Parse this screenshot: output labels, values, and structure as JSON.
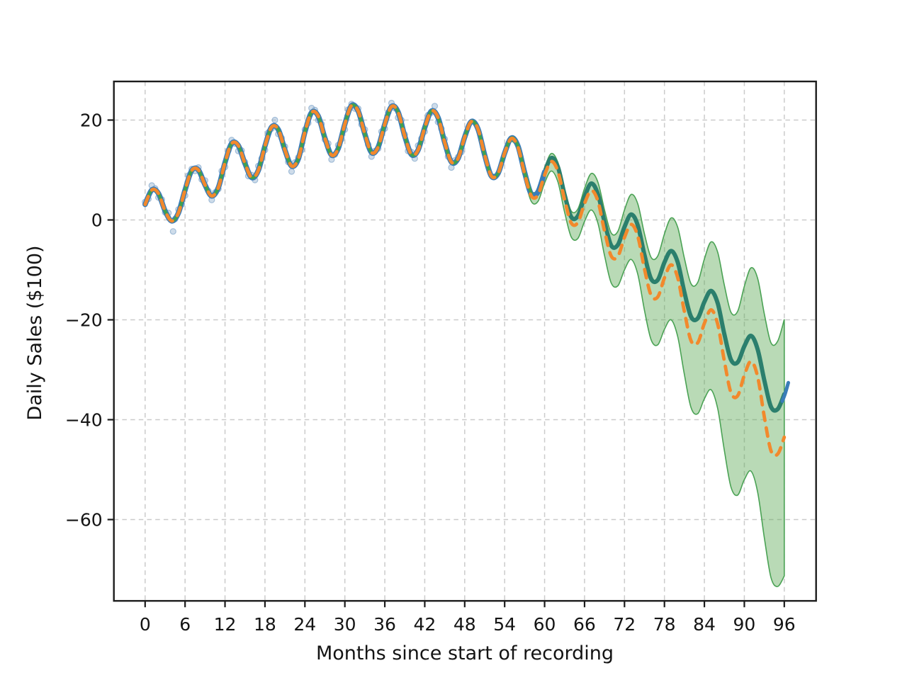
{
  "chart_data": {
    "type": "line",
    "title": "",
    "xlabel": "Months since start of recording",
    "ylabel": "Daily Sales ($100)",
    "xticks": [
      0,
      6,
      12,
      18,
      24,
      30,
      36,
      42,
      48,
      54,
      60,
      66,
      72,
      78,
      84,
      90,
      96
    ],
    "xtick_labels": [
      "0",
      "6",
      "12",
      "18",
      "24",
      "30",
      "36",
      "42",
      "48",
      "54",
      "60",
      "66",
      "72",
      "78",
      "84",
      "90",
      "96"
    ],
    "yticks": [
      20,
      0,
      -20,
      -40,
      -60
    ],
    "ytick_labels": [
      "20",
      "0",
      "−20",
      "−40",
      "−60"
    ],
    "xlim": [
      -4.7,
      101.1
    ],
    "ylim": [
      -76.3,
      27.7
    ],
    "grid": true,
    "grid_style": "dashed",
    "legend": "none",
    "colors": {
      "observations": "#7da3c8",
      "actual_line": "#3a7cb8",
      "fit_line": "#2b7f6d",
      "band_edge_line": "#41a24c",
      "forecast_dashed": "#f2892c",
      "band_fill": "rgba(88,168,82,0.42)",
      "band_edge": "#4aa254",
      "grid": "#cbcbcb",
      "spine": "#1c1c1c"
    },
    "series": [
      {
        "name": "observed-scatter",
        "type": "scatter",
        "color": "#7da3c8",
        "alpha": 0.38,
        "radius": 4,
        "points": [
          [
            0,
            3.6
          ],
          [
            0.5,
            4.2
          ],
          [
            1,
            6.9
          ],
          [
            1.5,
            6.3
          ],
          [
            2,
            4.5
          ],
          [
            2.5,
            4.1
          ],
          [
            3,
            1.5
          ],
          [
            3.5,
            1.4
          ],
          [
            4.2,
            -2.3
          ],
          [
            4.5,
            0.2
          ],
          [
            5,
            2.1
          ],
          [
            5.5,
            3.1
          ],
          [
            6,
            4.9
          ],
          [
            6.5,
            8.9
          ],
          [
            7,
            10.2
          ],
          [
            7.5,
            9.8
          ],
          [
            8,
            10.5
          ],
          [
            8.5,
            8.1
          ],
          [
            9,
            7.9
          ],
          [
            9.5,
            5.8
          ],
          [
            10,
            4.0
          ],
          [
            10.5,
            5.5
          ],
          [
            11,
            6.2
          ],
          [
            11.5,
            9.8
          ],
          [
            12,
            10.6
          ],
          [
            12.5,
            13.9
          ],
          [
            13,
            16.0
          ],
          [
            13.5,
            15.3
          ],
          [
            14,
            13.8
          ],
          [
            14.5,
            13.9
          ],
          [
            15,
            11.6
          ],
          [
            15.5,
            8.8
          ],
          [
            16,
            9.0
          ],
          [
            16.5,
            8.0
          ],
          [
            17,
            10.8
          ],
          [
            17.5,
            12.3
          ],
          [
            18,
            14.0
          ],
          [
            18.5,
            17.5
          ],
          [
            19,
            18.3
          ],
          [
            19.5,
            20.0
          ],
          [
            20,
            17.2
          ],
          [
            20.5,
            16.4
          ],
          [
            21,
            14.7
          ],
          [
            21.5,
            11.6
          ],
          [
            22,
            9.7
          ],
          [
            22.5,
            11.5
          ],
          [
            23,
            12.5
          ],
          [
            23.5,
            14.0
          ],
          [
            24,
            18.1
          ],
          [
            24.5,
            19.4
          ],
          [
            25,
            22.4
          ],
          [
            25.5,
            22.0
          ],
          [
            26,
            20.0
          ],
          [
            26.5,
            19.2
          ],
          [
            27,
            16.1
          ],
          [
            27.5,
            15.3
          ],
          [
            28,
            12.1
          ],
          [
            28.5,
            13.1
          ],
          [
            29,
            15.0
          ],
          [
            29.5,
            16.2
          ],
          [
            30,
            18.1
          ],
          [
            30.5,
            22.1
          ],
          [
            31,
            23.2
          ],
          [
            31.5,
            22.3
          ],
          [
            32,
            22.3
          ],
          [
            32.5,
            19.1
          ],
          [
            33,
            18.1
          ],
          [
            33.5,
            15.1
          ],
          [
            34,
            12.7
          ],
          [
            34.5,
            13.8
          ],
          [
            35,
            14.3
          ],
          [
            35.5,
            17.7
          ],
          [
            36,
            18.3
          ],
          [
            36.5,
            21.5
          ],
          [
            37,
            23.4
          ],
          [
            37.5,
            22.4
          ],
          [
            38,
            20.5
          ],
          [
            38.5,
            20.0
          ],
          [
            39,
            17.1
          ],
          [
            39.5,
            13.8
          ],
          [
            40,
            13.6
          ],
          [
            40.5,
            12.3
          ],
          [
            41,
            14.9
          ],
          [
            41.5,
            16.3
          ],
          [
            42,
            17.7
          ],
          [
            42.5,
            21.0
          ],
          [
            43,
            21.5
          ],
          [
            43.5,
            22.8
          ],
          [
            44,
            19.6
          ],
          [
            44.5,
            18.3
          ],
          [
            45,
            16.2
          ],
          [
            45.5,
            12.7
          ],
          [
            46,
            10.5
          ],
          [
            46.5,
            11.9
          ],
          [
            47,
            12.6
          ],
          [
            47.5,
            13.6
          ]
        ]
      },
      {
        "name": "actual-blue-line",
        "type": "line",
        "color": "#3a7cb8",
        "width": 7.5,
        "x_start": 0,
        "x_step": 1,
        "values": [
          3.1,
          6.0,
          5.3,
          1.8,
          -0.2,
          1.4,
          6.0,
          9.9,
          10.0,
          7.0,
          4.8,
          6.5,
          11.5,
          15.3,
          14.9,
          11.3,
          8.5,
          9.9,
          14.8,
          18.6,
          18.1,
          14.0,
          10.8,
          12.2,
          17.6,
          21.5,
          20.8,
          16.4,
          13.0,
          14.3,
          19.2,
          22.9,
          21.8,
          17.2,
          13.5,
          14.6,
          19.2,
          22.7,
          21.6,
          16.8,
          13.1,
          14.0,
          18.5,
          21.8,
          20.5,
          15.5,
          11.6,
          12.3,
          16.6,
          19.7,
          18.2,
          13.0,
          8.8,
          9.3,
          13.4,
          16.4,
          14.8,
          9.5,
          5.2,
          5.6,
          9.6
        ]
      },
      {
        "name": "actual-blue-end-stub",
        "type": "line",
        "color": "#3a7cb8",
        "width": 5,
        "points": [
          [
            95.7,
            -36.3
          ],
          [
            96.1,
            -34.9
          ],
          [
            96.6,
            -32.6
          ]
        ]
      },
      {
        "name": "fit-median-teal",
        "type": "line",
        "color": "#2b7f6d",
        "width": 6,
        "x_start": 52,
        "x_step": 1,
        "values": [
          8.8,
          9.3,
          13.4,
          16.4,
          14.8,
          9.5,
          5.2,
          5.6,
          9.6,
          12.4,
          10.6,
          5.1,
          0.6,
          0.8,
          4.6,
          7.3,
          5.2,
          -0.4,
          -5.1,
          -5.0,
          -1.4,
          1.1,
          -1.1,
          -7.0,
          -11.8,
          -12.0,
          -8.5,
          -6.2,
          -8.5,
          -14.5,
          -19.4,
          -19.7,
          -16.4,
          -14.2,
          -16.7,
          -22.9,
          -28.0,
          -28.5,
          -25.3,
          -23.2,
          -25.9,
          -32.1,
          -37.4,
          -37.9,
          -34.9
        ]
      },
      {
        "name": "band-center-green-line",
        "type": "line",
        "color": "#41a24c",
        "width": 4.2,
        "x_start": 0,
        "x_step": 1,
        "values": [
          3.1,
          6.0,
          5.3,
          1.8,
          -0.2,
          1.4,
          6.0,
          9.9,
          10.0,
          7.0,
          4.8,
          6.5,
          11.5,
          15.3,
          14.9,
          11.3,
          8.5,
          9.9,
          14.8,
          18.6,
          18.1,
          14.0,
          10.8,
          12.2,
          17.6,
          21.5,
          20.8,
          16.4,
          13.0,
          14.3,
          19.2,
          22.9,
          21.8,
          17.2,
          13.5,
          14.6,
          19.2,
          22.7,
          21.6,
          16.8,
          13.1,
          14.0,
          18.5,
          21.8,
          20.5,
          15.5,
          11.6,
          12.3,
          16.6,
          19.7,
          18.2,
          13.0,
          8.8,
          9.3,
          13.4,
          16.4,
          14.8,
          9.5,
          5.2
        ]
      },
      {
        "name": "forecast-mean-orange-dashed",
        "type": "dashed-line",
        "color": "#f2892c",
        "width": 4.8,
        "dash": [
          12,
          10.5
        ],
        "x_start": 0,
        "x_step": 1,
        "values": [
          3.1,
          6.0,
          5.3,
          1.8,
          -0.2,
          1.4,
          6.0,
          9.9,
          10.0,
          7.0,
          4.8,
          6.5,
          11.5,
          15.3,
          14.9,
          11.3,
          8.5,
          9.9,
          14.8,
          18.6,
          18.1,
          14.0,
          10.8,
          12.2,
          17.6,
          21.5,
          20.8,
          16.4,
          13.0,
          14.3,
          19.2,
          22.9,
          21.8,
          17.2,
          13.5,
          14.6,
          19.2,
          22.7,
          21.6,
          16.8,
          13.1,
          14.0,
          18.5,
          21.8,
          20.5,
          15.5,
          11.6,
          12.3,
          16.6,
          19.7,
          18.2,
          13.0,
          8.8,
          9.3,
          13.4,
          16.3,
          14.6,
          9.2,
          4.8,
          5.0,
          9.0,
          11.7,
          9.7,
          4.1,
          -0.6,
          -0.5,
          3.3,
          5.9,
          3.8,
          -2.2,
          -7.2,
          -7.3,
          -3.5,
          -0.9,
          -3.3,
          -9.8,
          -15.1,
          -15.4,
          -11.6,
          -9.0,
          -11.6,
          -18.4,
          -24.2,
          -24.6,
          -20.7,
          -18.0,
          -20.9,
          -28.3,
          -34.6,
          -35.2,
          -31.1,
          -28.3,
          -31.4,
          -39.4,
          -46.2,
          -46.9,
          -43.5
        ]
      },
      {
        "name": "uncertainty-band",
        "type": "band",
        "fill": "rgba(88,168,82,0.42)",
        "edge": "#4aa254",
        "edge_width": 1.6,
        "x_start": 48,
        "x_step": 1,
        "upper": [
          16.7,
          19.8,
          18.4,
          13.2,
          9.1,
          9.6,
          13.8,
          16.8,
          15.3,
          10.0,
          5.8,
          6.2,
          10.4,
          13.3,
          11.5,
          6.2,
          1.8,
          2.2,
          6.3,
          9.3,
          7.6,
          2.0,
          -2.6,
          -2.3,
          2.0,
          5.1,
          3.2,
          -2.8,
          -7.5,
          -7.2,
          -2.8,
          0.4,
          -1.5,
          -7.7,
          -12.8,
          -12.5,
          -7.8,
          -4.4,
          -6.5,
          -13.1,
          -18.5,
          -18.3,
          -13.3,
          -9.6,
          -11.7,
          -18.8,
          -24.6,
          -24.3,
          -19.9
        ],
        "lower": [
          16.4,
          19.5,
          18.0,
          12.8,
          8.5,
          8.9,
          12.9,
          15.7,
          13.8,
          8.3,
          3.7,
          3.7,
          7.4,
          9.8,
          7.6,
          1.6,
          -3.4,
          -3.7,
          -0.3,
          2.0,
          -0.6,
          -7.1,
          -12.6,
          -13.2,
          -10.0,
          -7.9,
          -10.9,
          -18.1,
          -24.0,
          -25.0,
          -21.9,
          -20.0,
          -23.4,
          -31.0,
          -37.6,
          -38.8,
          -35.8,
          -34.0,
          -37.8,
          -46.2,
          -53.5,
          -55.1,
          -52.0,
          -50.3,
          -54.5,
          -63.6,
          -71.6,
          -73.4,
          -71.3
        ]
      }
    ]
  }
}
